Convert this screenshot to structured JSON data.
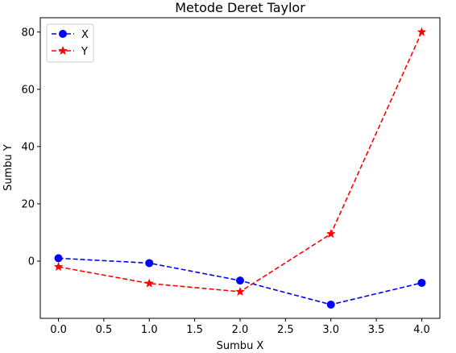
{
  "chart_data": {
    "type": "line",
    "title": "Metode Deret Taylor",
    "xlabel": "Sumbu X",
    "ylabel": "Sumbu Y",
    "xlim": [
      -0.2,
      4.2
    ],
    "ylim": [
      -20,
      85
    ],
    "xticks": [
      0.0,
      0.5,
      1.0,
      1.5,
      2.0,
      2.5,
      3.0,
      3.5,
      4.0
    ],
    "xtick_labels": [
      "0.0",
      "0.5",
      "1.0",
      "1.5",
      "2.0",
      "2.5",
      "3.0",
      "3.5",
      "4.0"
    ],
    "yticks": [
      0,
      20,
      40,
      60,
      80
    ],
    "ytick_labels": [
      "0",
      "20",
      "40",
      "60",
      "80"
    ],
    "grid": false,
    "legend_position": "top-left",
    "x": [
      0,
      1,
      2,
      3,
      4
    ],
    "series": [
      {
        "name": "X",
        "values": [
          1,
          -0.7,
          -6.8,
          -15.2,
          -7.6
        ],
        "color": "#0000ff",
        "marker": "circle",
        "linestyle": "dashed"
      },
      {
        "name": "Y",
        "values": [
          -2,
          -7.8,
          -10.7,
          9.5,
          80
        ],
        "color": "#ff0000",
        "marker": "star",
        "linestyle": "dashed"
      }
    ]
  }
}
